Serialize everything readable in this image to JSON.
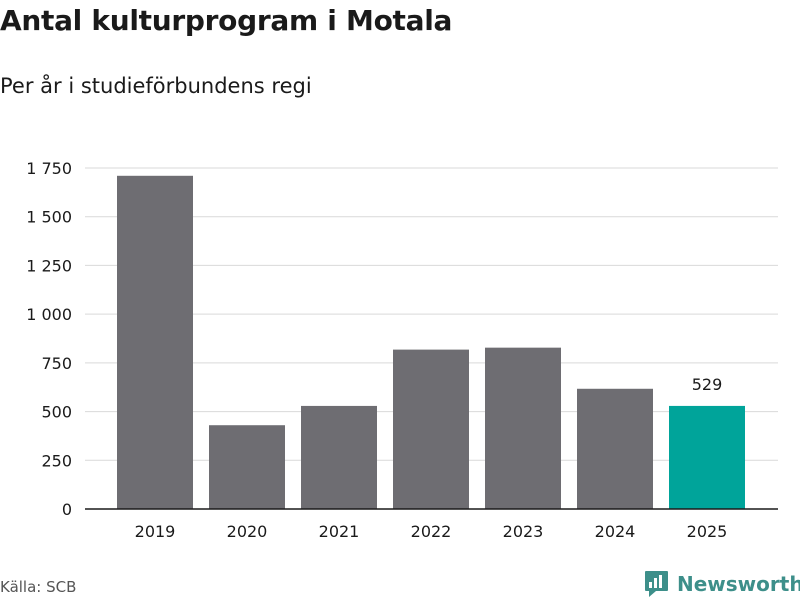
{
  "header": {
    "title": "Antal kulturprogram i Motala",
    "subtitle": "Per år i studieförbundens regi"
  },
  "footer": {
    "source": "Källa: SCB",
    "brand": "Newsworthy"
  },
  "colors": {
    "bar": "#6e6d72",
    "highlight": "#00a49a",
    "grid": "#d9d9d9",
    "axis": "#1a1a1a",
    "brand": "#3d8f8a"
  },
  "chart_data": {
    "type": "bar",
    "categories": [
      "2019",
      "2020",
      "2021",
      "2022",
      "2023",
      "2024",
      "2025"
    ],
    "values": [
      1710,
      430,
      529,
      818,
      828,
      617,
      529
    ],
    "ylim": [
      0,
      1750
    ],
    "yticks": [
      0,
      250,
      500,
      750,
      1000,
      1250,
      1500,
      1750
    ],
    "ytick_labels": [
      "0",
      "250",
      "500",
      "750",
      "1 000",
      "1 250",
      "1 500",
      "1 750"
    ],
    "highlight_index": 6,
    "data_labels": [
      {
        "index": 6,
        "text": "529"
      }
    ],
    "grid": true,
    "xlabel": "",
    "ylabel": ""
  }
}
